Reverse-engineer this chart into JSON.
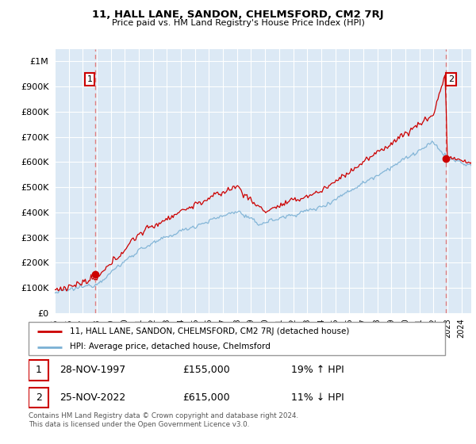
{
  "title": "11, HALL LANE, SANDON, CHELMSFORD, CM2 7RJ",
  "subtitle": "Price paid vs. HM Land Registry's House Price Index (HPI)",
  "red_label": "11, HALL LANE, SANDON, CHELMSFORD, CM2 7RJ (detached house)",
  "blue_label": "HPI: Average price, detached house, Chelmsford",
  "point1_date": "28-NOV-1997",
  "point1_price": 155000,
  "point1_hpi": "19% ↑ HPI",
  "point2_date": "25-NOV-2022",
  "point2_price": 615000,
  "point2_hpi": "11% ↓ HPI",
  "footer": "Contains HM Land Registry data © Crown copyright and database right 2024.\nThis data is licensed under the Open Government Licence v3.0.",
  "ylim": [
    0,
    1050000
  ],
  "yticks": [
    0,
    100000,
    200000,
    300000,
    400000,
    500000,
    600000,
    700000,
    800000,
    900000,
    1000000
  ],
  "sale1_x": 1997.9,
  "sale1_y": 155000,
  "sale2_x": 2022.9,
  "sale2_y": 615000,
  "xlim_start": 1995.3,
  "xlim_end": 2024.7,
  "background_color": "#ffffff",
  "plot_bg_color": "#dce9f5",
  "grid_color": "#ffffff",
  "red_color": "#cc0000",
  "blue_color": "#7ab0d4",
  "dashed_color": "#e08080"
}
